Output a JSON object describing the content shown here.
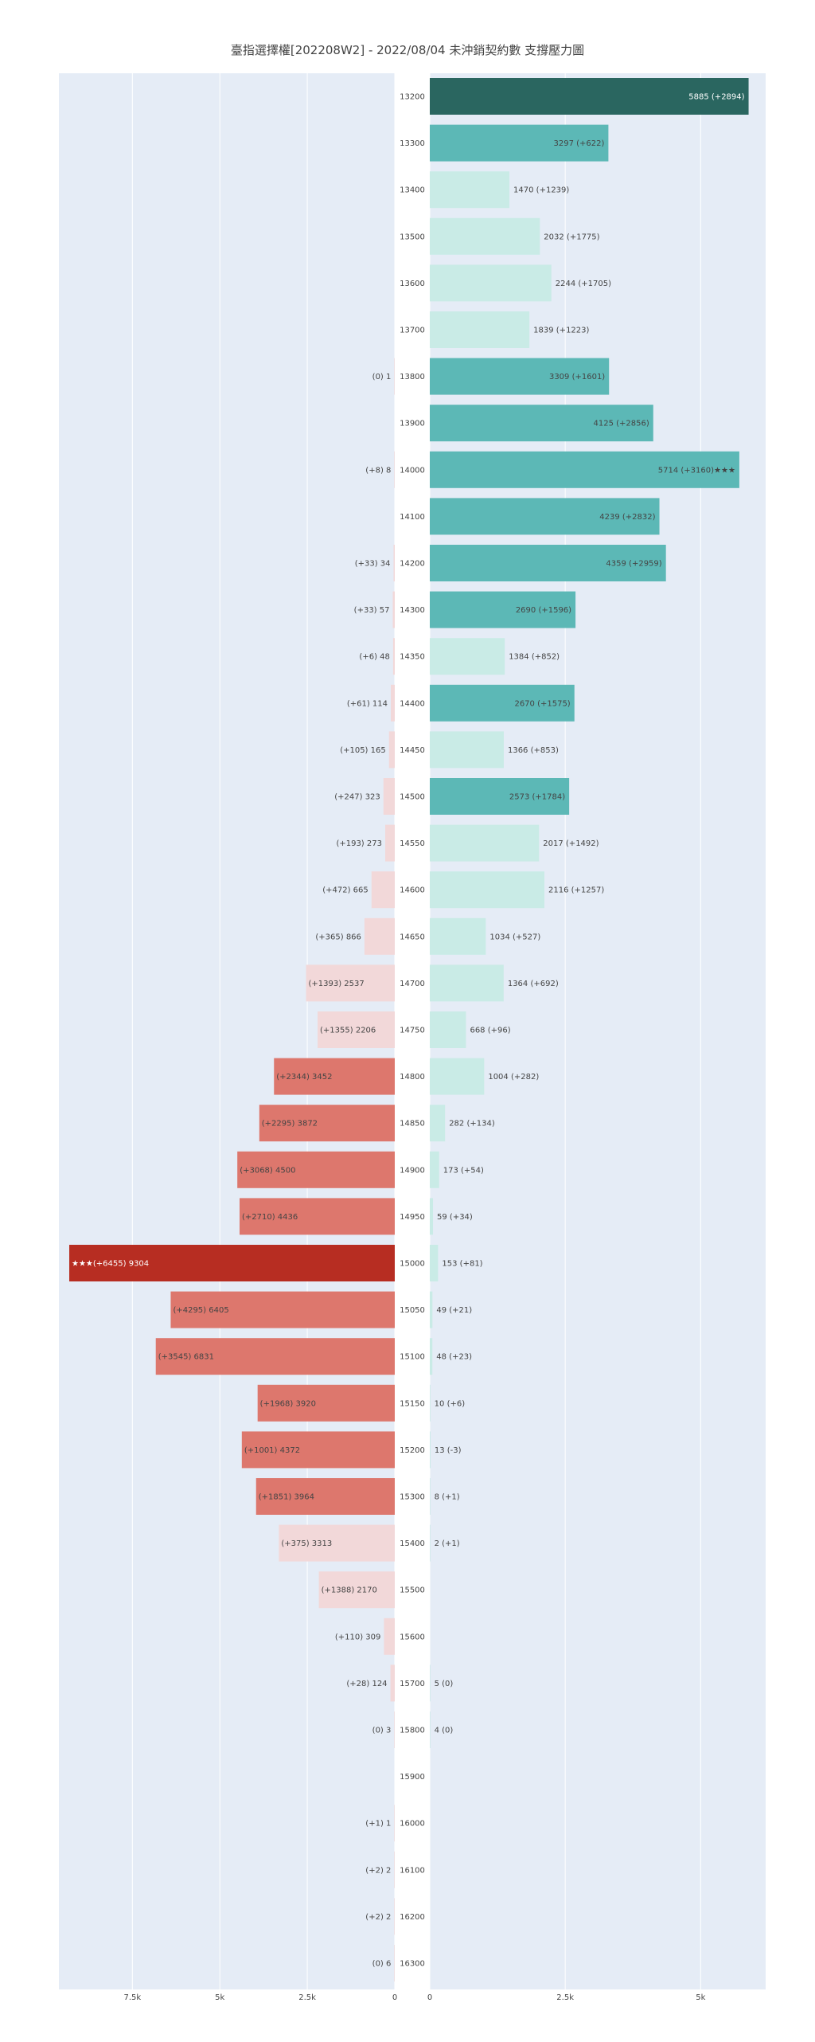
{
  "title": "臺指選擇權[202208W2] - 2022/08/04 未沖銷契約數 支撐壓力圖",
  "colors": {
    "plot_bg": "#e5ecf6",
    "call_strong": "#2a6660",
    "call_mid": "#5cb8b6",
    "call_light": "#c9ebe6",
    "put_strong": "#b72d22",
    "put_mid": "#dd776d",
    "put_light": "#f2d8d9",
    "tick_text": "#444444",
    "title_text": "#444444"
  },
  "chart_data": {
    "type": "bar",
    "orientation": "horizontal",
    "grid": true,
    "legend": "none",
    "title": "臺指選擇權[202208W2] - 2022/08/04 未沖銷契約數 支撐壓力圖",
    "left_panel": {
      "name": "",
      "xlim": [
        9600,
        0
      ],
      "tick_labels": [
        "7.5k",
        "5k",
        "2.5k",
        "0"
      ],
      "tick_values": [
        7500,
        5000,
        2500,
        0
      ]
    },
    "right_panel": {
      "name": "",
      "xlim": [
        0,
        6200
      ],
      "tick_labels": [
        "0",
        "2.5k",
        "5k"
      ],
      "tick_values": [
        0,
        2500,
        5000
      ]
    },
    "categories": [
      "13200",
      "13300",
      "13400",
      "13500",
      "13600",
      "13700",
      "13800",
      "13900",
      "14000",
      "14100",
      "14200",
      "14300",
      "14350",
      "14400",
      "14450",
      "14500",
      "14550",
      "14600",
      "14650",
      "14700",
      "14750",
      "14800",
      "14850",
      "14900",
      "14950",
      "15000",
      "15050",
      "15100",
      "15150",
      "15200",
      "15300",
      "15400",
      "15500",
      "15600",
      "15700",
      "15800",
      "15900",
      "16000",
      "16100",
      "16200",
      "16300"
    ],
    "rows": [
      {
        "strike": "13200",
        "put": null,
        "put_label": "",
        "call": 5885,
        "call_label": "5885  (+2894)",
        "call_level": "strong",
        "put_level": "light"
      },
      {
        "strike": "13300",
        "put": null,
        "put_label": "",
        "call": 3297,
        "call_label": "3297  (+622)",
        "call_level": "mid",
        "put_level": "light"
      },
      {
        "strike": "13400",
        "put": null,
        "put_label": "",
        "call": 1470,
        "call_label": "1470  (+1239)",
        "call_level": "light",
        "put_level": "light"
      },
      {
        "strike": "13500",
        "put": null,
        "put_label": "",
        "call": 2032,
        "call_label": "2032  (+1775)",
        "call_level": "light",
        "put_level": "light"
      },
      {
        "strike": "13600",
        "put": null,
        "put_label": "",
        "call": 2244,
        "call_label": "2244  (+1705)",
        "call_level": "light",
        "put_level": "light"
      },
      {
        "strike": "13700",
        "put": null,
        "put_label": "",
        "call": 1839,
        "call_label": "1839  (+1223)",
        "call_level": "light",
        "put_level": "light"
      },
      {
        "strike": "13800",
        "put": 1,
        "put_label": "(0)  1",
        "call": 3309,
        "call_label": "3309  (+1601)",
        "call_level": "mid",
        "put_level": "light"
      },
      {
        "strike": "13900",
        "put": null,
        "put_label": "",
        "call": 4125,
        "call_label": "4125  (+2856)",
        "call_level": "mid",
        "put_level": "light"
      },
      {
        "strike": "14000",
        "put": 8,
        "put_label": "(+8)  8",
        "call": 5714,
        "call_label": "5714  (+3160)★★★",
        "call_level": "mid",
        "put_level": "light"
      },
      {
        "strike": "14100",
        "put": null,
        "put_label": "",
        "call": 4239,
        "call_label": "4239  (+2832)",
        "call_level": "mid",
        "put_level": "light"
      },
      {
        "strike": "14200",
        "put": 34,
        "put_label": "(+33)  34",
        "call": 4359,
        "call_label": "4359  (+2959)",
        "call_level": "mid",
        "put_level": "light"
      },
      {
        "strike": "14300",
        "put": 57,
        "put_label": "(+33)  57",
        "call": 2690,
        "call_label": "2690  (+1596)",
        "call_level": "mid",
        "put_level": "light"
      },
      {
        "strike": "14350",
        "put": 48,
        "put_label": "(+6)  48",
        "call": 1384,
        "call_label": "1384  (+852)",
        "call_level": "light",
        "put_level": "light"
      },
      {
        "strike": "14400",
        "put": 114,
        "put_label": "(+61)  114",
        "call": 2670,
        "call_label": "2670  (+1575)",
        "call_level": "mid",
        "put_level": "light"
      },
      {
        "strike": "14450",
        "put": 165,
        "put_label": "(+105)  165",
        "call": 1366,
        "call_label": "1366  (+853)",
        "call_level": "light",
        "put_level": "light"
      },
      {
        "strike": "14500",
        "put": 323,
        "put_label": "(+247)  323",
        "call": 2573,
        "call_label": "2573  (+1784)",
        "call_level": "mid",
        "put_level": "light"
      },
      {
        "strike": "14550",
        "put": 273,
        "put_label": "(+193)  273",
        "call": 2017,
        "call_label": "2017  (+1492)",
        "call_level": "light",
        "put_level": "light"
      },
      {
        "strike": "14600",
        "put": 665,
        "put_label": "(+472)  665",
        "call": 2116,
        "call_label": "2116  (+1257)",
        "call_level": "light",
        "put_level": "light"
      },
      {
        "strike": "14650",
        "put": 866,
        "put_label": "(+365)  866",
        "call": 1034,
        "call_label": "1034  (+527)",
        "call_level": "light",
        "put_level": "light"
      },
      {
        "strike": "14700",
        "put": 2537,
        "put_label": "(+1393)  2537",
        "call": 1364,
        "call_label": "1364  (+692)",
        "call_level": "light",
        "put_level": "light"
      },
      {
        "strike": "14750",
        "put": 2206,
        "put_label": "(+1355)  2206",
        "call": 668,
        "call_label": "668  (+96)",
        "call_level": "light",
        "put_level": "light"
      },
      {
        "strike": "14800",
        "put": 3452,
        "put_label": "(+2344)  3452",
        "call": 1004,
        "call_label": "1004  (+282)",
        "call_level": "light",
        "put_level": "mid"
      },
      {
        "strike": "14850",
        "put": 3872,
        "put_label": "(+2295)  3872",
        "call": 282,
        "call_label": "282  (+134)",
        "call_level": "light",
        "put_level": "mid"
      },
      {
        "strike": "14900",
        "put": 4500,
        "put_label": "(+3068)  4500",
        "call": 173,
        "call_label": "173  (+54)",
        "call_level": "light",
        "put_level": "mid"
      },
      {
        "strike": "14950",
        "put": 4436,
        "put_label": "(+2710)  4436",
        "call": 59,
        "call_label": "59  (+34)",
        "call_level": "light",
        "put_level": "mid"
      },
      {
        "strike": "15000",
        "put": 9304,
        "put_label": "★★★(+6455)  9304",
        "call": 153,
        "call_label": "153  (+81)",
        "call_level": "light",
        "put_level": "strong"
      },
      {
        "strike": "15050",
        "put": 6405,
        "put_label": "(+4295)  6405",
        "call": 49,
        "call_label": "49  (+21)",
        "call_level": "light",
        "put_level": "mid"
      },
      {
        "strike": "15100",
        "put": 6831,
        "put_label": "(+3545)  6831",
        "call": 48,
        "call_label": "48  (+23)",
        "call_level": "light",
        "put_level": "mid"
      },
      {
        "strike": "15150",
        "put": 3920,
        "put_label": "(+1968)  3920",
        "call": 10,
        "call_label": "10  (+6)",
        "call_level": "light",
        "put_level": "mid"
      },
      {
        "strike": "15200",
        "put": 4372,
        "put_label": "(+1001)  4372",
        "call": 13,
        "call_label": "13  (-3)",
        "call_level": "light",
        "put_level": "mid"
      },
      {
        "strike": "15300",
        "put": 3964,
        "put_label": "(+1851)  3964",
        "call": 8,
        "call_label": "8  (+1)",
        "call_level": "light",
        "put_level": "mid"
      },
      {
        "strike": "15400",
        "put": 3313,
        "put_label": "(+375)  3313",
        "call": 2,
        "call_label": "2  (+1)",
        "call_level": "light",
        "put_level": "light"
      },
      {
        "strike": "15500",
        "put": 2170,
        "put_label": "(+1388)  2170",
        "call": null,
        "call_label": "",
        "call_level": "light",
        "put_level": "light"
      },
      {
        "strike": "15600",
        "put": 309,
        "put_label": "(+110)  309",
        "call": null,
        "call_label": "",
        "call_level": "light",
        "put_level": "light"
      },
      {
        "strike": "15700",
        "put": 124,
        "put_label": "(+28)  124",
        "call": 5,
        "call_label": "5  (0)",
        "call_level": "light",
        "put_level": "light"
      },
      {
        "strike": "15800",
        "put": 3,
        "put_label": "(0)  3",
        "call": 4,
        "call_label": "4  (0)",
        "call_level": "light",
        "put_level": "light"
      },
      {
        "strike": "15900",
        "put": null,
        "put_label": "",
        "call": null,
        "call_label": "",
        "call_level": "light",
        "put_level": "light"
      },
      {
        "strike": "16000",
        "put": 1,
        "put_label": "(+1)  1",
        "call": null,
        "call_label": "",
        "call_level": "light",
        "put_level": "light"
      },
      {
        "strike": "16100",
        "put": 2,
        "put_label": "(+2)  2",
        "call": null,
        "call_label": "",
        "call_level": "light",
        "put_level": "light"
      },
      {
        "strike": "16200",
        "put": 2,
        "put_label": "(+2)  2",
        "call": null,
        "call_label": "",
        "call_level": "light",
        "put_level": "light"
      },
      {
        "strike": "16300",
        "put": 6,
        "put_label": "(0)  6",
        "call": null,
        "call_label": "",
        "call_level": "light",
        "put_level": "light"
      }
    ]
  }
}
